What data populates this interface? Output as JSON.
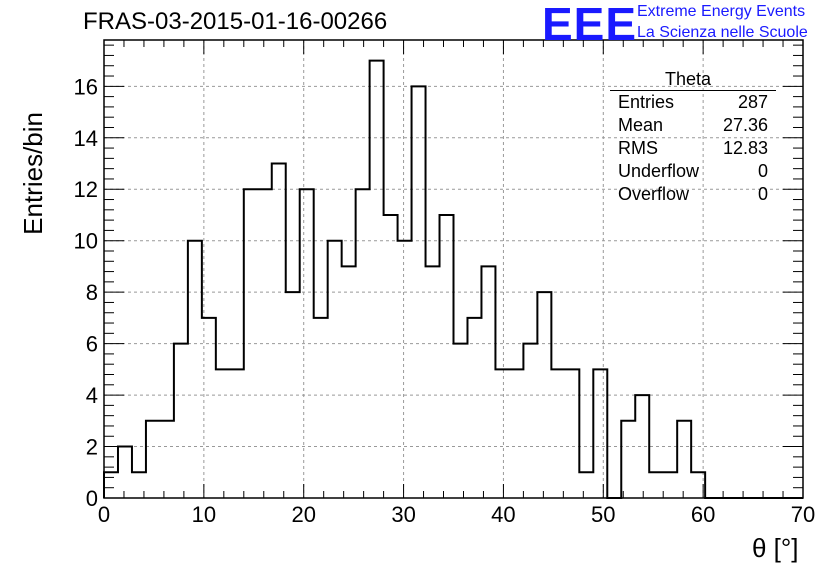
{
  "chart_data": {
    "type": "bar",
    "title": "FRAS-03-2015-01-16-00266",
    "xlabel": "θ [°]",
    "ylabel": "Entries/bin",
    "xlim": [
      0,
      70
    ],
    "ylim": [
      0,
      17.8
    ],
    "x_ticks": [
      0,
      10,
      20,
      30,
      40,
      50,
      60,
      70
    ],
    "y_ticks": [
      0,
      2,
      4,
      6,
      8,
      10,
      12,
      14,
      16
    ],
    "grid": true,
    "bin_width": 1.4,
    "bin_edges_start": 0,
    "values": [
      1,
      2,
      1,
      3,
      3,
      6,
      10,
      7,
      5,
      5,
      12,
      12,
      13,
      8,
      12,
      7,
      10,
      9,
      12,
      17,
      11,
      10,
      16,
      9,
      11,
      6,
      7,
      9,
      5,
      5,
      6,
      8,
      5,
      5,
      1,
      5,
      0,
      3,
      4,
      1,
      1,
      3,
      1,
      0,
      0,
      0,
      0,
      0,
      0,
      0
    ]
  },
  "stats_box": {
    "title": "Theta",
    "rows": [
      {
        "label": "Entries",
        "value": "287"
      },
      {
        "label": "Mean",
        "value": "27.36"
      },
      {
        "label": "RMS",
        "value": "12.83"
      },
      {
        "label": "Underflow",
        "value": "0"
      },
      {
        "label": "Overflow",
        "value": "0"
      }
    ]
  },
  "logo": {
    "mark": "EEE",
    "line1": "Extreme Energy Events",
    "line2": "La Scienza nelle Scuole",
    "color": "#1a1aff"
  }
}
